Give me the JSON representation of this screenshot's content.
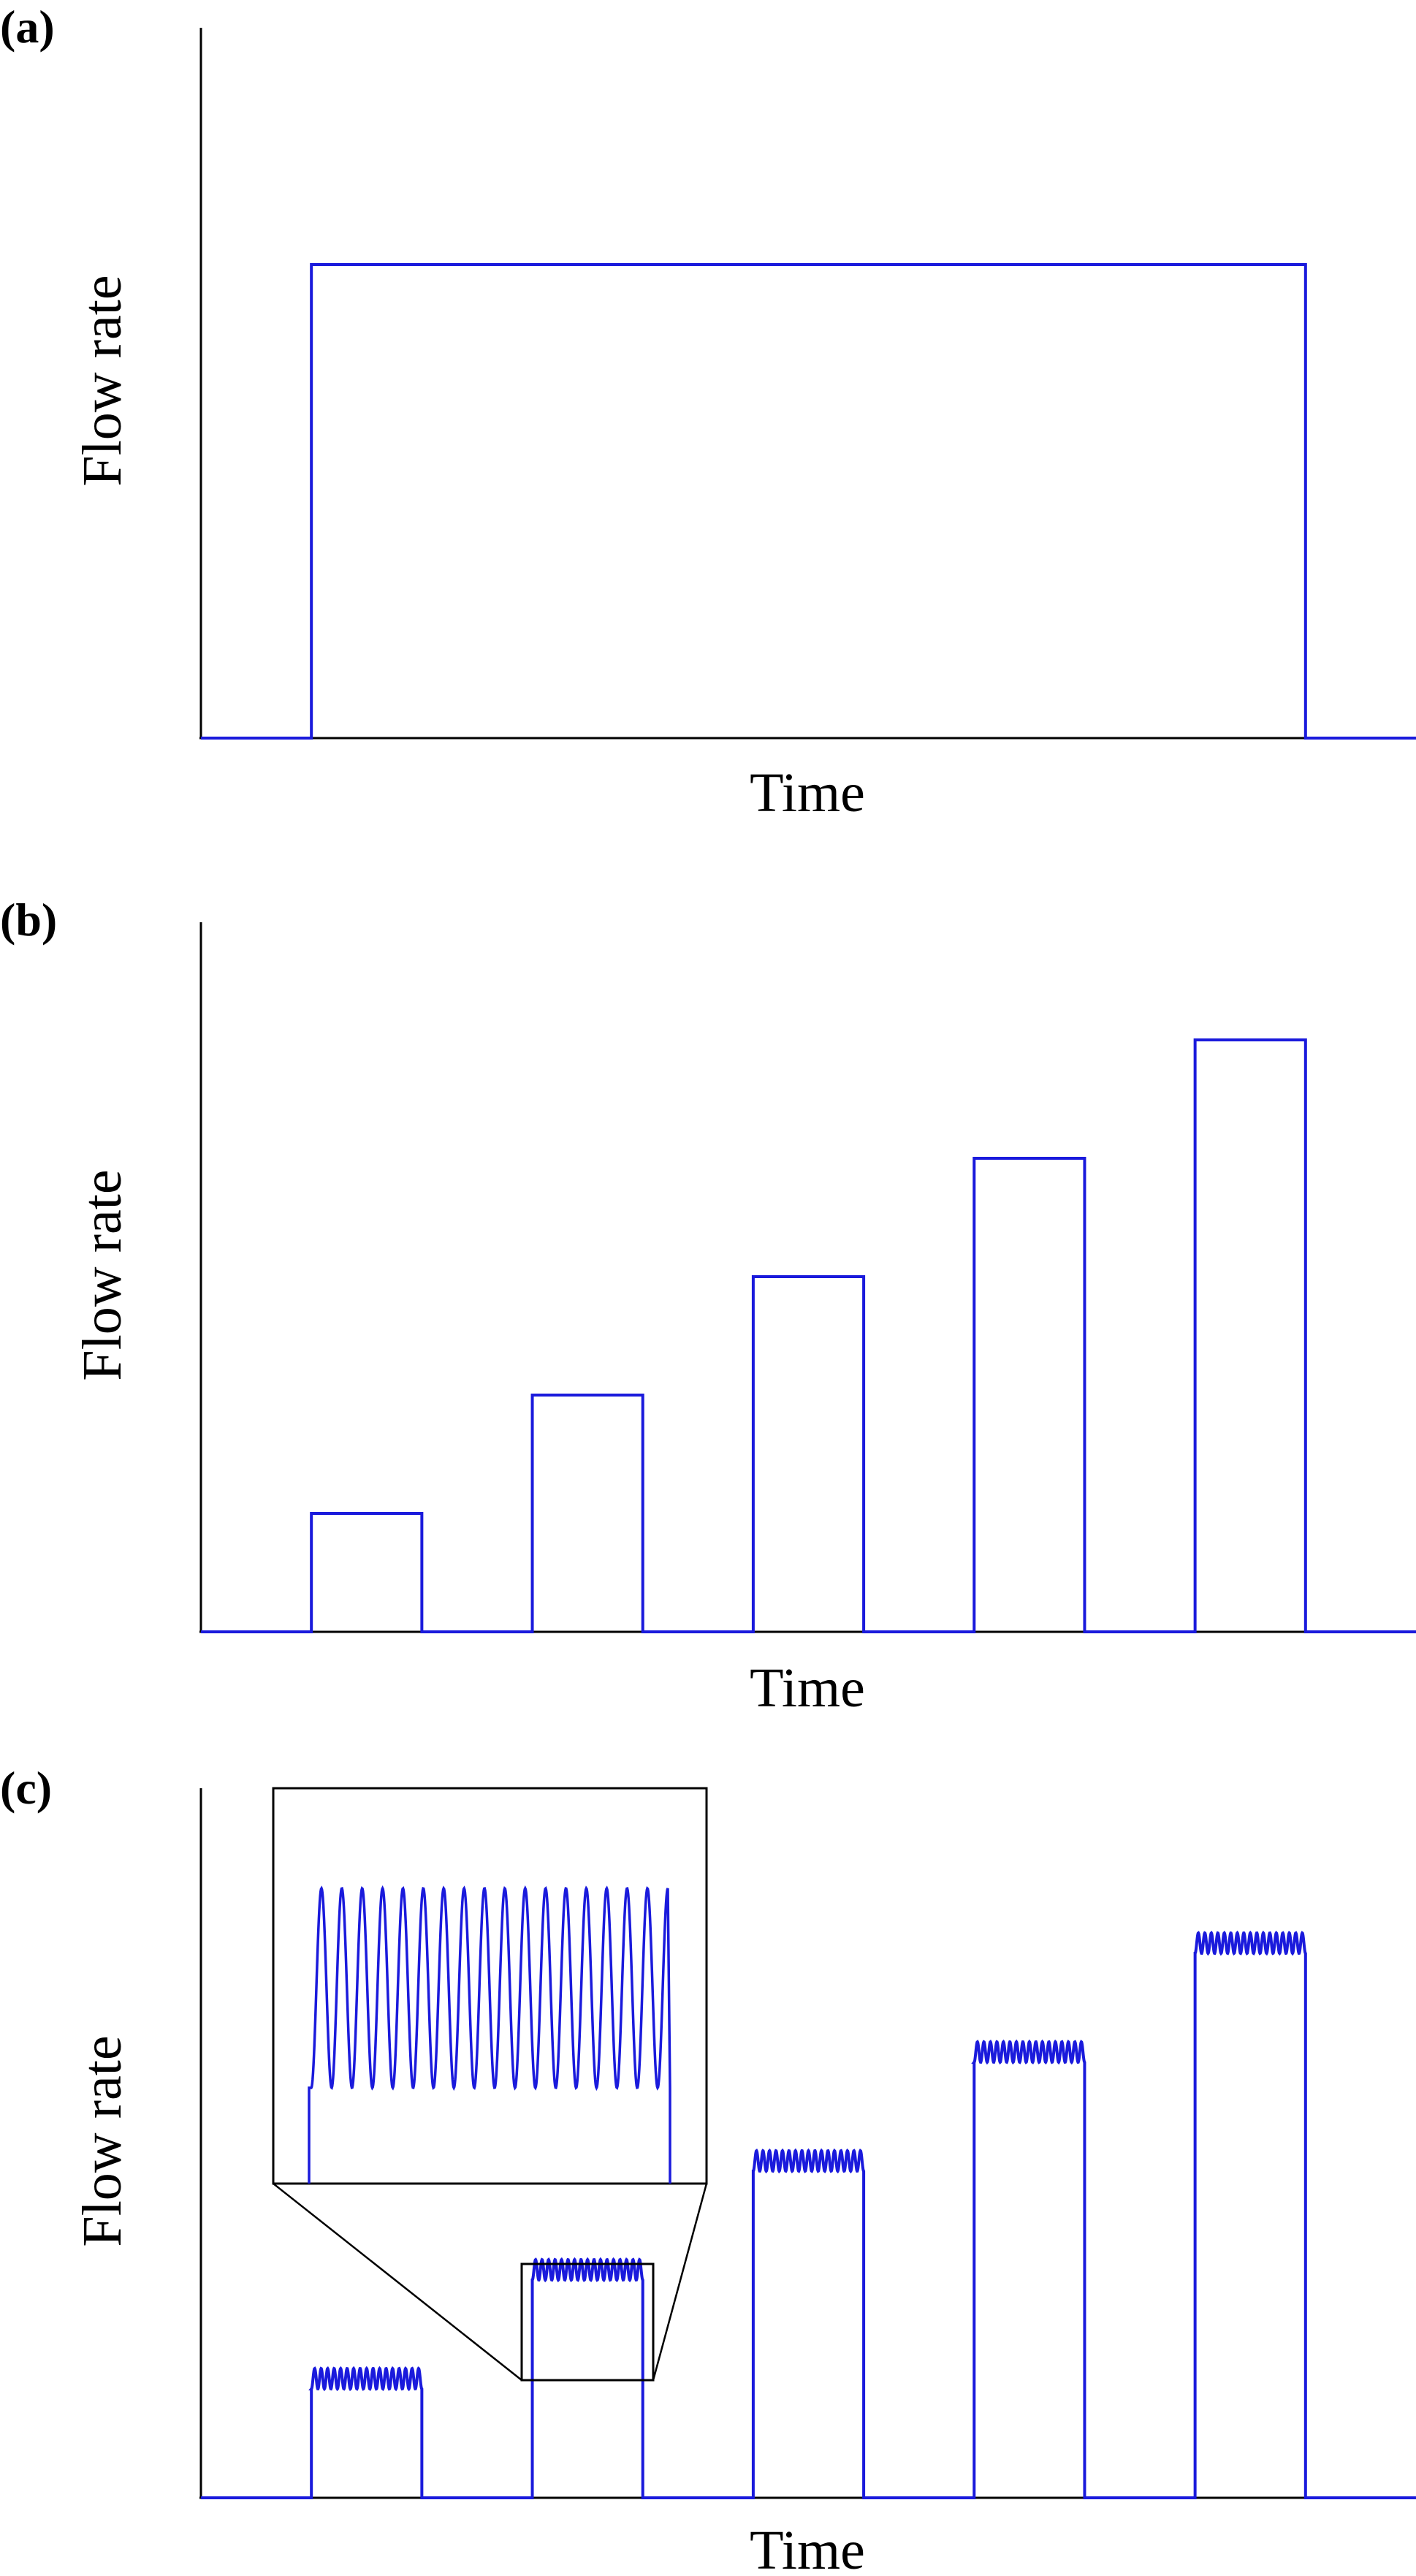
{
  "chart_data": [
    {
      "panel": "(a)",
      "type": "line",
      "xlabel": "Time",
      "ylabel": "Flow rate",
      "ticks": "none",
      "grid": false,
      "color": "#1a1adc",
      "steps": [
        {
          "start": 1,
          "end": 10,
          "level": 1
        }
      ]
    },
    {
      "panel": "(b)",
      "type": "line",
      "xlabel": "Time",
      "ylabel": "Flow rate",
      "ticks": "none",
      "grid": false,
      "color": "#1a1adc",
      "steps": [
        {
          "start": 1,
          "end": 2,
          "level": 0.2
        },
        {
          "start": 3,
          "end": 4,
          "level": 0.4
        },
        {
          "start": 5,
          "end": 6,
          "level": 0.6
        },
        {
          "start": 7,
          "end": 8,
          "level": 0.8
        },
        {
          "start": 9,
          "end": 10,
          "level": 1.0
        }
      ]
    },
    {
      "panel": "(c)",
      "type": "line",
      "xlabel": "Time",
      "ylabel": "Flow rate",
      "ticks": "none",
      "grid": false,
      "color": "#1a1adc",
      "oscillation_cycles_per_step": 17,
      "inset": "zoom of second step",
      "steps": [
        {
          "start": 1,
          "end": 2,
          "level": 0.2,
          "amplitude": 0.05
        },
        {
          "start": 3,
          "end": 4,
          "level": 0.4,
          "amplitude": 0.05
        },
        {
          "start": 5,
          "end": 6,
          "level": 0.6,
          "amplitude": 0.05
        },
        {
          "start": 7,
          "end": 8,
          "level": 0.8,
          "amplitude": 0.05
        },
        {
          "start": 9,
          "end": 10,
          "level": 1.0,
          "amplitude": 0.05
        }
      ]
    }
  ]
}
